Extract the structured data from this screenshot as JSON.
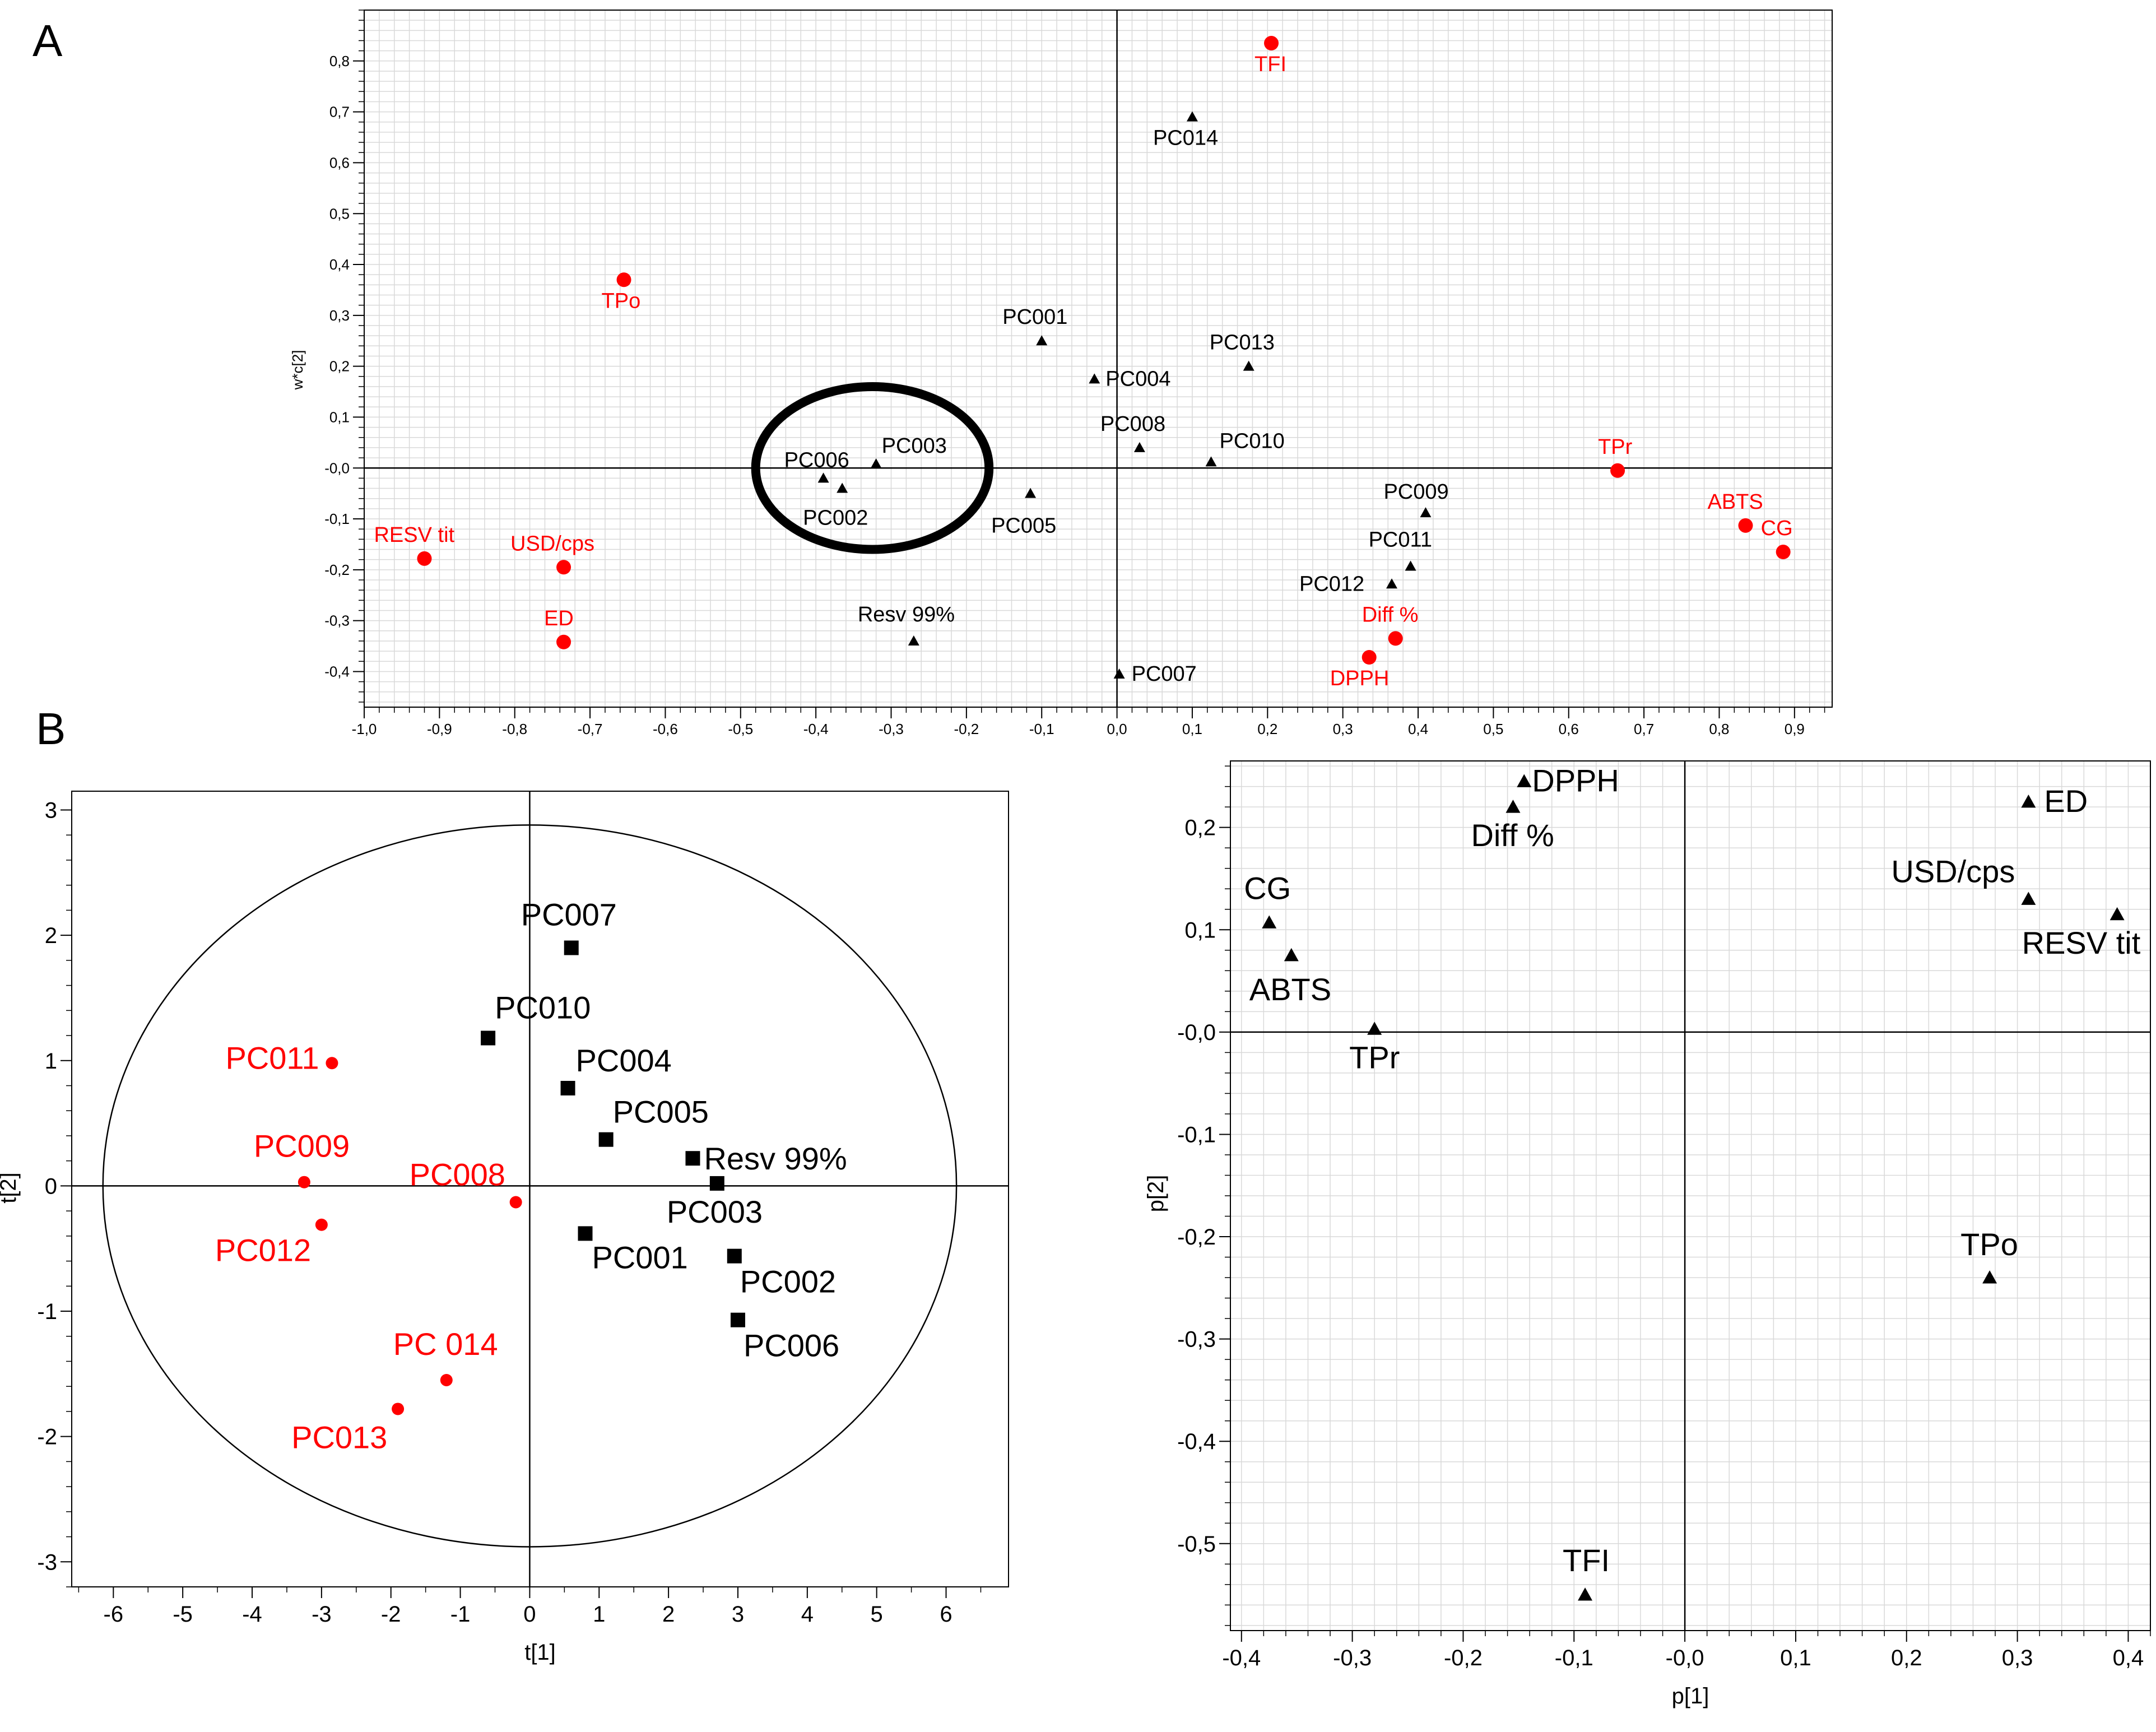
{
  "panels": {
    "a": "A",
    "b": "B"
  },
  "chart_data": [
    {
      "id": "A",
      "type": "scatter",
      "title": "",
      "xlabel": "",
      "ylabel": "w*c[2]",
      "xlim": [
        -1.0,
        0.95
      ],
      "ylim": [
        -0.47,
        0.9
      ],
      "xticks": [
        -1.0,
        -0.9,
        -0.8,
        -0.7,
        -0.6,
        -0.5,
        -0.4,
        -0.3,
        -0.2,
        -0.1,
        0.0,
        0.1,
        0.2,
        0.3,
        0.4,
        0.5,
        0.6,
        0.7,
        0.8,
        0.9
      ],
      "xtick_labels": [
        "-1,0",
        "-0,9",
        "-0,8",
        "-0,7",
        "-0,6",
        "-0,5",
        "-0,4",
        "-0,3",
        "-0,2",
        "-0,1",
        "0,0",
        "0,1",
        "0,2",
        "0,3",
        "0,4",
        "0,5",
        "0,6",
        "0,7",
        "0,8",
        "0,9"
      ],
      "yticks": [
        -0.4,
        -0.3,
        -0.2,
        -0.1,
        0.0,
        0.1,
        0.2,
        0.3,
        0.4,
        0.5,
        0.6,
        0.7,
        0.8
      ],
      "ytick_labels": [
        "-0,4",
        "-0,3",
        "-0,2",
        "-0,1",
        "-0,0",
        "0,1",
        "0,2",
        "0,3",
        "0,4",
        "0,5",
        "0,6",
        "0,7",
        "0,8"
      ],
      "grid": true,
      "series": [
        {
          "marker": "triangle",
          "color": "#000000",
          "points": [
            {
              "label": "PC014",
              "x": 0.1,
              "y": 0.69
            },
            {
              "label": "PC001",
              "x": -0.1,
              "y": 0.25
            },
            {
              "label": "PC004",
              "x": -0.03,
              "y": 0.175
            },
            {
              "label": "PC013",
              "x": 0.175,
              "y": 0.2
            },
            {
              "label": "PC008",
              "x": 0.03,
              "y": 0.04
            },
            {
              "label": "PC010",
              "x": 0.125,
              "y": 0.012
            },
            {
              "label": "PC006",
              "x": -0.39,
              "y": -0.02
            },
            {
              "label": "PC003",
              "x": -0.32,
              "y": 0.008
            },
            {
              "label": "PC002",
              "x": -0.365,
              "y": -0.04
            },
            {
              "label": "PC005",
              "x": -0.115,
              "y": -0.05
            },
            {
              "label": "PC009",
              "x": 0.41,
              "y": -0.088
            },
            {
              "label": "PC011",
              "x": 0.39,
              "y": -0.193
            },
            {
              "label": "PC012",
              "x": 0.365,
              "y": -0.228
            },
            {
              "label": "Resv 99%",
              "x": -0.27,
              "y": -0.34
            },
            {
              "label": "PC007",
              "x": 0.003,
              "y": -0.405
            }
          ]
        },
        {
          "marker": "circle",
          "color": "#ff0000",
          "points": [
            {
              "label": "TFI",
              "x": 0.205,
              "y": 0.835
            },
            {
              "label": "TPo",
              "x": -0.655,
              "y": 0.37
            },
            {
              "label": "TPr",
              "x": 0.665,
              "y": -0.005
            },
            {
              "label": "ABTS",
              "x": 0.835,
              "y": -0.113
            },
            {
              "label": "CG",
              "x": 0.885,
              "y": -0.165
            },
            {
              "label": "RESV tit",
              "x": -0.92,
              "y": -0.178
            },
            {
              "label": "USD/cps",
              "x": -0.735,
              "y": -0.195
            },
            {
              "label": "ED",
              "x": -0.735,
              "y": -0.342
            },
            {
              "label": "Diff %",
              "x": 0.37,
              "y": -0.335
            },
            {
              "label": "DPPH",
              "x": 0.335,
              "y": -0.372
            }
          ]
        }
      ],
      "annotation": {
        "shape": "ellipse",
        "cx": -0.325,
        "cy": 0.0,
        "rx": 0.155,
        "ry": 0.16
      }
    },
    {
      "id": "B-scores",
      "type": "scatter",
      "title": "",
      "xlabel": "t[1]",
      "ylabel": "t[2]",
      "xlim": [
        -6.6,
        6.9
      ],
      "ylim": [
        -3.2,
        3.15
      ],
      "xticks": [
        -6,
        -5,
        -4,
        -3,
        -2,
        -1,
        0,
        1,
        2,
        3,
        4,
        5,
        6
      ],
      "xtick_labels": [
        "-6",
        "-5",
        "-4",
        "-3",
        "-2",
        "-1",
        "0",
        "1",
        "2",
        "3",
        "4",
        "5",
        "6"
      ],
      "yticks": [
        -3,
        -2,
        -1,
        0,
        1,
        2,
        3
      ],
      "ytick_labels": [
        "-3",
        "-2",
        "-1",
        "0",
        "1",
        "2",
        "3"
      ],
      "grid": false,
      "series": [
        {
          "marker": "square",
          "color": "#000000",
          "points": [
            {
              "label": "PC007",
              "x": 0.6,
              "y": 1.9
            },
            {
              "label": "PC010",
              "x": -0.6,
              "y": 1.18
            },
            {
              "label": "PC004",
              "x": 0.55,
              "y": 0.78
            },
            {
              "label": "PC005",
              "x": 1.1,
              "y": 0.37
            },
            {
              "label": "Resv 99%",
              "x": 2.35,
              "y": 0.22
            },
            {
              "label": "PC003",
              "x": 2.7,
              "y": 0.02
            },
            {
              "label": "PC001",
              "x": 0.8,
              "y": -0.38
            },
            {
              "label": "PC002",
              "x": 2.95,
              "y": -0.56
            },
            {
              "label": "PC006",
              "x": 3.0,
              "y": -1.07
            }
          ]
        },
        {
          "marker": "circle",
          "color": "#ff0000",
          "points": [
            {
              "label": "PC011",
              "x": -2.85,
              "y": 0.98
            },
            {
              "label": "PC009",
              "x": -3.25,
              "y": 0.03
            },
            {
              "label": "PC008",
              "x": -0.2,
              "y": -0.13
            },
            {
              "label": "PC012",
              "x": -3.0,
              "y": -0.31
            },
            {
              "label": "PC 014",
              "x": -1.2,
              "y": -1.55
            },
            {
              "label": "PC013",
              "x": -1.9,
              "y": -1.78
            }
          ]
        }
      ],
      "annotation": {
        "shape": "ellipse",
        "cx": 0.0,
        "cy": 0.0,
        "rx": 6.15,
        "ry": 2.88
      }
    },
    {
      "id": "B-loadings",
      "type": "scatter",
      "title": "",
      "xlabel": "p[1]",
      "ylabel": "p[2]",
      "xlim": [
        -0.41,
        0.42
      ],
      "ylim": [
        -0.585,
        0.265
      ],
      "xticks": [
        -0.4,
        -0.3,
        -0.2,
        -0.1,
        0.0,
        0.1,
        0.2,
        0.3,
        0.4
      ],
      "xtick_labels": [
        "-0,4",
        "-0,3",
        "-0,2",
        "-0,1",
        "-0,0",
        "0,1",
        "0,2",
        "0,3",
        "0,4"
      ],
      "yticks": [
        -0.5,
        -0.4,
        -0.3,
        -0.2,
        -0.1,
        0.0,
        0.1,
        0.2
      ],
      "ytick_labels": [
        "-0,5",
        "-0,4",
        "-0,3",
        "-0,2",
        "-0,1",
        "-0,0",
        "0,1",
        "0,2"
      ],
      "grid": true,
      "series": [
        {
          "marker": "triangle",
          "color": "#000000",
          "points": [
            {
              "label": "DPPH",
              "x": -0.145,
              "y": 0.245
            },
            {
              "label": "Diff %",
              "x": -0.155,
              "y": 0.22
            },
            {
              "label": "ED",
              "x": 0.31,
              "y": 0.225
            },
            {
              "label": "USD/cps",
              "x": 0.31,
              "y": 0.13
            },
            {
              "label": "RESV tit",
              "x": 0.39,
              "y": 0.115
            },
            {
              "label": "CG",
              "x": -0.375,
              "y": 0.107
            },
            {
              "label": "ABTS",
              "x": -0.355,
              "y": 0.075
            },
            {
              "label": "TPr",
              "x": -0.28,
              "y": 0.003
            },
            {
              "label": "TPo",
              "x": 0.275,
              "y": -0.24
            },
            {
              "label": "TFI",
              "x": -0.09,
              "y": -0.55
            }
          ]
        }
      ]
    }
  ]
}
